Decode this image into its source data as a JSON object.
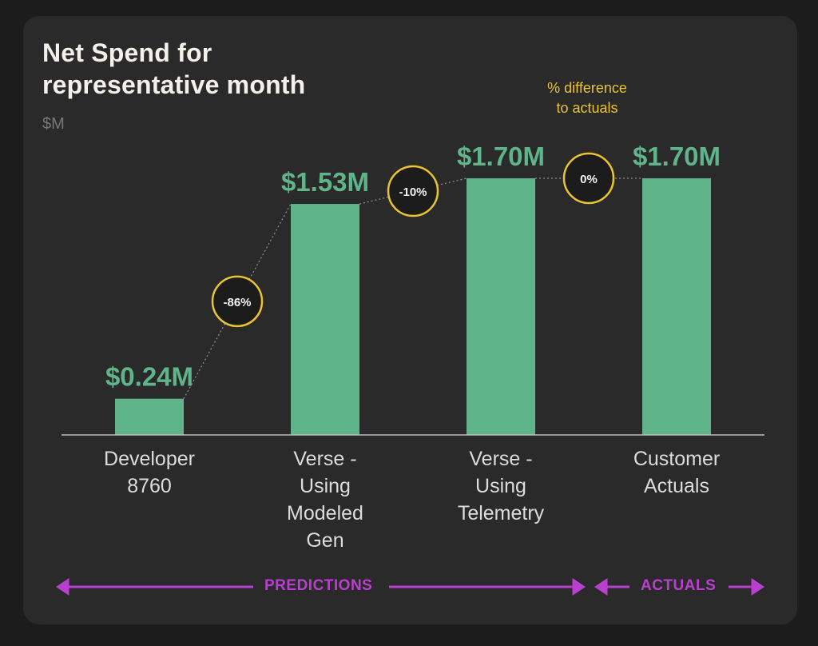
{
  "chart_data": {
    "type": "bar",
    "title": "Net Spend for representative month",
    "unit": "$M",
    "categories": [
      "Developer\n8760",
      "Verse -\nUsing\nModeled\nGen",
      "Verse -\nUsing\nTelemetry",
      "Customer\nActuals"
    ],
    "values": [
      0.24,
      1.53,
      1.7,
      1.7
    ],
    "data_labels": [
      "$0.24M",
      "$1.53M",
      "$1.70M",
      "$1.70M"
    ],
    "pct_diff": [
      "-86%",
      "-10%",
      "0%"
    ],
    "annotation": "% difference\nto actuals",
    "groups": [
      {
        "label": "PREDICTIONS",
        "from": 0,
        "to": 2
      },
      {
        "label": "ACTUALS",
        "from": 3,
        "to": 3
      }
    ],
    "ylim": [
      0,
      1.7
    ],
    "grid": false,
    "colors": {
      "bar": "#5fb48a",
      "data_label": "#5fb48a",
      "badge": "#e9c430",
      "badge_fill": "#1c1c1c",
      "arrow": "#b93fd0",
      "connector": "#8a8a8a",
      "axis": "#bdbdbd"
    }
  }
}
